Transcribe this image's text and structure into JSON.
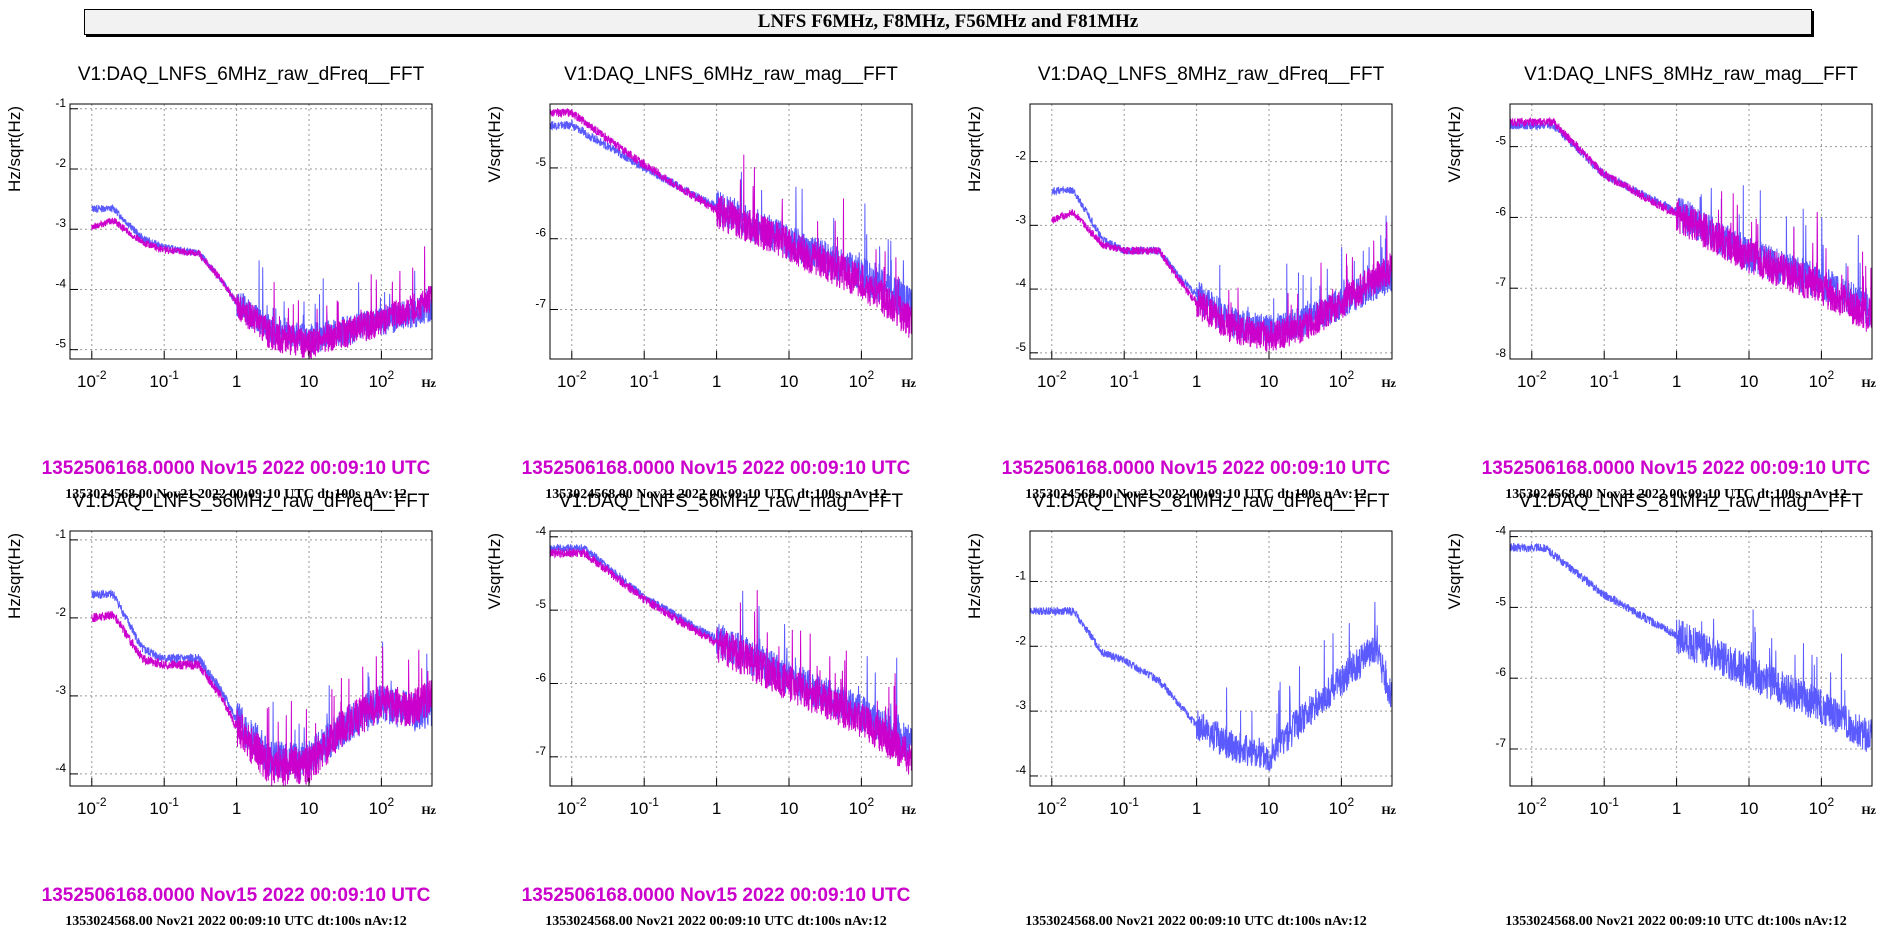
{
  "page_title": "LNFS F6MHz, F8MHz, F56MHz and F81MHz",
  "colors": {
    "reference": "#5a5aff",
    "current": "#cc00cc",
    "grid": "#999999",
    "title_bg": "#f2f2f2"
  },
  "x_unit": "Hz",
  "chart_data": [
    {
      "type": "line",
      "title": "V1:DAQ_LNFS_6MHz_raw_dFreq__FFT",
      "ylabel": "Hz/sqrt(Hz)",
      "xlabel": "Hz",
      "xscale": "log",
      "yscale": "log",
      "xlim": [
        0.005,
        500
      ],
      "ylim": [
        7e-06,
        0.12
      ],
      "grid": true,
      "yticks": [
        {
          "base": "10",
          "exp": "-5",
          "value": 1e-05
        },
        {
          "base": "10",
          "exp": "-4",
          "value": 0.0001
        },
        {
          "base": "10",
          "exp": "-3",
          "value": 0.001
        },
        {
          "base": "10",
          "exp": "-2",
          "value": 0.01
        },
        {
          "base": "10",
          "exp": "-1",
          "value": 0.1
        }
      ],
      "series": [
        {
          "color": "#5a5aff",
          "points": [
            [
              0.01,
              0.0022
            ],
            [
              0.02,
              0.0022
            ],
            [
              0.05,
              0.0007
            ],
            [
              0.1,
              0.0005
            ],
            [
              0.3,
              0.0004
            ],
            [
              0.6,
              0.00015
            ],
            [
              1,
              6e-05
            ],
            [
              3,
              2e-05
            ],
            [
              10,
              1.5e-05
            ],
            [
              30,
              2e-05
            ],
            [
              100,
              3e-05
            ],
            [
              300,
              4e-05
            ],
            [
              450,
              5e-05
            ]
          ]
        },
        {
          "color": "#cc00cc",
          "points": [
            [
              0.01,
              0.0011
            ],
            [
              0.02,
              0.0014
            ],
            [
              0.05,
              0.0006
            ],
            [
              0.1,
              0.00045
            ],
            [
              0.3,
              0.0004
            ],
            [
              0.6,
              0.00015
            ],
            [
              1,
              6e-05
            ],
            [
              3,
              1.7e-05
            ],
            [
              10,
              1.2e-05
            ],
            [
              30,
              1.8e-05
            ],
            [
              100,
              3e-05
            ],
            [
              300,
              5e-05
            ],
            [
              450,
              7e-05
            ]
          ]
        }
      ],
      "stamp_current": "1352506168.0000 Nov15 2022 00:09:10 UTC",
      "stamp_reference": "1353024568.00 Nov21 2022 00:09:10 UTC dt:100s nAv:12"
    },
    {
      "type": "line",
      "title": "V1:DAQ_LNFS_6MHz_raw_mag__FFT",
      "ylabel": "V/sqrt(Hz)",
      "xlabel": "Hz",
      "xscale": "log",
      "yscale": "log",
      "xlim": [
        0.005,
        500
      ],
      "ylim": [
        2e-08,
        8e-05
      ],
      "grid": true,
      "yticks": [
        {
          "base": "10",
          "exp": "-7",
          "value": 1e-07
        },
        {
          "base": "10",
          "exp": "-6",
          "value": 1e-06
        },
        {
          "base": "10",
          "exp": "-5",
          "value": 1e-05
        }
      ],
      "series": [
        {
          "color": "#5a5aff",
          "points": [
            [
              0.005,
              4e-05
            ],
            [
              0.01,
              4e-05
            ],
            [
              0.1,
              1e-05
            ],
            [
              1,
              2.8e-06
            ],
            [
              10,
              9e-07
            ],
            [
              100,
              3.2e-07
            ],
            [
              450,
              1.2e-07
            ]
          ]
        },
        {
          "color": "#cc00cc",
          "points": [
            [
              0.005,
              6e-05
            ],
            [
              0.01,
              6e-05
            ],
            [
              0.1,
              1.1e-05
            ],
            [
              1,
              2.5e-06
            ],
            [
              10,
              8e-07
            ],
            [
              100,
              2.5e-07
            ],
            [
              450,
              7e-08
            ]
          ]
        }
      ],
      "stamp_current": "1352506168.0000 Nov15 2022 00:09:10 UTC",
      "stamp_reference": "1353024568.00 Nov21 2022 00:09:10 UTC dt:100s nAv:12"
    },
    {
      "type": "line",
      "title": "V1:DAQ_LNFS_8MHz_raw_dFreq__FFT",
      "ylabel": "Hz/sqrt(Hz)",
      "xlabel": "Hz",
      "xscale": "log",
      "yscale": "log",
      "xlim": [
        0.005,
        500
      ],
      "ylim": [
        8e-06,
        0.08
      ],
      "grid": true,
      "yticks": [
        {
          "base": "10",
          "exp": "-5",
          "value": 1e-05
        },
        {
          "base": "10",
          "exp": "-4",
          "value": 0.0001
        },
        {
          "base": "10",
          "exp": "-3",
          "value": 0.001
        },
        {
          "base": "10",
          "exp": "-2",
          "value": 0.01
        }
      ],
      "series": [
        {
          "color": "#5a5aff",
          "points": [
            [
              0.01,
              0.0035
            ],
            [
              0.02,
              0.0035
            ],
            [
              0.05,
              0.0006
            ],
            [
              0.1,
              0.0004
            ],
            [
              0.3,
              0.0004
            ],
            [
              0.6,
              0.00015
            ],
            [
              1,
              8e-05
            ],
            [
              3,
              3e-05
            ],
            [
              10,
              2.2e-05
            ],
            [
              30,
              3e-05
            ],
            [
              100,
              6e-05
            ],
            [
              300,
              0.00012
            ],
            [
              450,
              0.00015
            ]
          ]
        },
        {
          "color": "#cc00cc",
          "points": [
            [
              0.01,
              0.0012
            ],
            [
              0.02,
              0.0016
            ],
            [
              0.05,
              0.0005
            ],
            [
              0.1,
              0.0004
            ],
            [
              0.3,
              0.0004
            ],
            [
              0.6,
              0.00013
            ],
            [
              1,
              6e-05
            ],
            [
              3,
              2.5e-05
            ],
            [
              10,
              1.8e-05
            ],
            [
              30,
              2.5e-05
            ],
            [
              100,
              6e-05
            ],
            [
              300,
              0.00015
            ],
            [
              450,
              0.0002
            ]
          ]
        }
      ],
      "stamp_current": "1352506168.0000 Nov15 2022 00:09:10 UTC",
      "stamp_reference": "1353024568.00 Nov21 2022 00:09:10 UTC dt:100s nAv:12"
    },
    {
      "type": "line",
      "title": "V1:DAQ_LNFS_8MHz_raw_mag__FFT",
      "ylabel": "V/sqrt(Hz)",
      "xlabel": "Hz",
      "xscale": "log",
      "yscale": "log",
      "xlim": [
        0.005,
        500
      ],
      "ylim": [
        1e-08,
        4e-05
      ],
      "grid": true,
      "yticks": [
        {
          "base": "10",
          "exp": "-8",
          "value": 1e-08
        },
        {
          "base": "10",
          "exp": "-7",
          "value": 1e-07
        },
        {
          "base": "10",
          "exp": "-6",
          "value": 1e-06
        },
        {
          "base": "10",
          "exp": "-5",
          "value": 1e-05
        }
      ],
      "series": [
        {
          "color": "#5a5aff",
          "points": [
            [
              0.005,
              2e-05
            ],
            [
              0.02,
              2e-05
            ],
            [
              0.1,
              4e-06
            ],
            [
              1,
              1.2e-06
            ],
            [
              10,
              3e-07
            ],
            [
              100,
              1.2e-07
            ],
            [
              450,
              5e-08
            ]
          ]
        },
        {
          "color": "#cc00cc",
          "points": [
            [
              0.005,
              2.2e-05
            ],
            [
              0.02,
              2.2e-05
            ],
            [
              0.1,
              4e-06
            ],
            [
              1,
              1.1e-06
            ],
            [
              10,
              2.8e-07
            ],
            [
              100,
              1e-07
            ],
            [
              450,
              4e-08
            ]
          ]
        }
      ],
      "stamp_current": "1352506168.0000 Nov15 2022 00:09:10 UTC",
      "stamp_reference": "1353024568.00 Nov21 2022 00:09:10 UTC dt:100s nAv:12"
    },
    {
      "type": "line",
      "title": "V1:DAQ_LNFS_56MHz_raw_dFreq__FFT",
      "ylabel": "Hz/sqrt(Hz)",
      "xlabel": "Hz",
      "xscale": "log",
      "yscale": "log",
      "xlim": [
        0.005,
        500
      ],
      "ylim": [
        7e-05,
        0.13
      ],
      "grid": true,
      "yticks": [
        {
          "base": "10",
          "exp": "-4",
          "value": 0.0001
        },
        {
          "base": "10",
          "exp": "-3",
          "value": 0.001
        },
        {
          "base": "10",
          "exp": "-2",
          "value": 0.01
        },
        {
          "base": "10",
          "exp": "-1",
          "value": 0.1
        }
      ],
      "series": [
        {
          "color": "#5a5aff",
          "points": [
            [
              0.01,
              0.02
            ],
            [
              0.02,
              0.02
            ],
            [
              0.05,
              0.004
            ],
            [
              0.1,
              0.003
            ],
            [
              0.3,
              0.003
            ],
            [
              0.6,
              0.0012
            ],
            [
              1,
              0.0005
            ],
            [
              3,
              0.00015
            ],
            [
              10,
              0.00015
            ],
            [
              30,
              0.0004
            ],
            [
              100,
              0.0008
            ],
            [
              300,
              0.0006
            ],
            [
              450,
              0.0007
            ]
          ]
        },
        {
          "color": "#cc00cc",
          "points": [
            [
              0.01,
              0.01
            ],
            [
              0.02,
              0.011
            ],
            [
              0.05,
              0.003
            ],
            [
              0.1,
              0.0025
            ],
            [
              0.3,
              0.0025
            ],
            [
              0.6,
              0.001
            ],
            [
              1,
              0.0004
            ],
            [
              3,
              0.00012
            ],
            [
              10,
              0.00013
            ],
            [
              30,
              0.0004
            ],
            [
              100,
              0.0008
            ],
            [
              300,
              0.0007
            ],
            [
              450,
              0.0009
            ]
          ]
        }
      ],
      "stamp_current": "1352506168.0000 Nov15 2022 00:09:10 UTC",
      "stamp_reference": "1353024568.00 Nov21 2022 00:09:10 UTC dt:100s nAv:12"
    },
    {
      "type": "line",
      "title": "V1:DAQ_LNFS_56MHz_raw_mag__FFT",
      "ylabel": "V/sqrt(Hz)",
      "xlabel": "Hz",
      "xscale": "log",
      "yscale": "log",
      "xlim": [
        0.005,
        500
      ],
      "ylim": [
        4e-08,
        0.00012
      ],
      "grid": true,
      "yticks": [
        {
          "base": "10",
          "exp": "-7",
          "value": 1e-07
        },
        {
          "base": "10",
          "exp": "-6",
          "value": 1e-06
        },
        {
          "base": "10",
          "exp": "-5",
          "value": 1e-05
        },
        {
          "base": "10",
          "exp": "-4",
          "value": 0.0001
        }
      ],
      "series": [
        {
          "color": "#5a5aff",
          "points": [
            [
              0.005,
              7e-05
            ],
            [
              0.015,
              7e-05
            ],
            [
              0.1,
              1.5e-05
            ],
            [
              1,
              4e-06
            ],
            [
              10,
              1.2e-06
            ],
            [
              100,
              4e-07
            ],
            [
              450,
              1.5e-07
            ]
          ]
        },
        {
          "color": "#cc00cc",
          "points": [
            [
              0.005,
              6e-05
            ],
            [
              0.015,
              6e-05
            ],
            [
              0.1,
              1.4e-05
            ],
            [
              1,
              3.5e-06
            ],
            [
              10,
              1e-06
            ],
            [
              100,
              3.2e-07
            ],
            [
              450,
              1e-07
            ]
          ]
        }
      ],
      "stamp_current": "1352506168.0000 Nov15 2022 00:09:10 UTC",
      "stamp_reference": "1353024568.00 Nov21 2022 00:09:10 UTC dt:100s nAv:12"
    },
    {
      "type": "line",
      "title": "V1:DAQ_LNFS_81MHz_raw_dFreq__FFT",
      "ylabel": "Hz/sqrt(Hz)",
      "xlabel": "Hz",
      "xscale": "log",
      "yscale": "log",
      "xlim": [
        0.005,
        500
      ],
      "ylim": [
        7e-05,
        0.6
      ],
      "grid": true,
      "yticks": [
        {
          "base": "10",
          "exp": "-4",
          "value": 0.0001
        },
        {
          "base": "10",
          "exp": "-3",
          "value": 0.001
        },
        {
          "base": "10",
          "exp": "-2",
          "value": 0.01
        },
        {
          "base": "10",
          "exp": "-1",
          "value": 0.1
        }
      ],
      "series": [
        {
          "color": "#5a5aff",
          "points": [
            [
              0.005,
              0.035
            ],
            [
              0.02,
              0.035
            ],
            [
              0.05,
              0.008
            ],
            [
              0.1,
              0.006
            ],
            [
              0.3,
              0.003
            ],
            [
              1,
              0.0006
            ],
            [
              3,
              0.0003
            ],
            [
              10,
              0.0002
            ],
            [
              30,
              0.0008
            ],
            [
              100,
              0.003
            ],
            [
              300,
              0.01
            ],
            [
              450,
              0.002
            ]
          ]
        }
      ],
      "stamp_current": "",
      "stamp_reference": "1353024568.00 Nov21 2022 00:09:10 UTC dt:100s nAv:12"
    },
    {
      "type": "line",
      "title": "V1:DAQ_LNFS_81MHz_raw_mag__FFT",
      "ylabel": "V/sqrt(Hz)",
      "xlabel": "Hz",
      "xscale": "log",
      "yscale": "log",
      "xlim": [
        0.005,
        500
      ],
      "ylim": [
        3e-08,
        0.00012
      ],
      "grid": true,
      "yticks": [
        {
          "base": "10",
          "exp": "-7",
          "value": 1e-07
        },
        {
          "base": "10",
          "exp": "-6",
          "value": 1e-06
        },
        {
          "base": "10",
          "exp": "-5",
          "value": 1e-05
        },
        {
          "base": "10",
          "exp": "-4",
          "value": 0.0001
        }
      ],
      "series": [
        {
          "color": "#5a5aff",
          "points": [
            [
              0.005,
              7e-05
            ],
            [
              0.015,
              7e-05
            ],
            [
              0.1,
              1.5e-05
            ],
            [
              1,
              4e-06
            ],
            [
              10,
              1.2e-06
            ],
            [
              100,
              4e-07
            ],
            [
              450,
              1.5e-07
            ]
          ]
        }
      ],
      "stamp_current": "",
      "stamp_reference": "1353024568.00 Nov21 2022 00:09:10 UTC dt:100s nAv:12"
    }
  ]
}
